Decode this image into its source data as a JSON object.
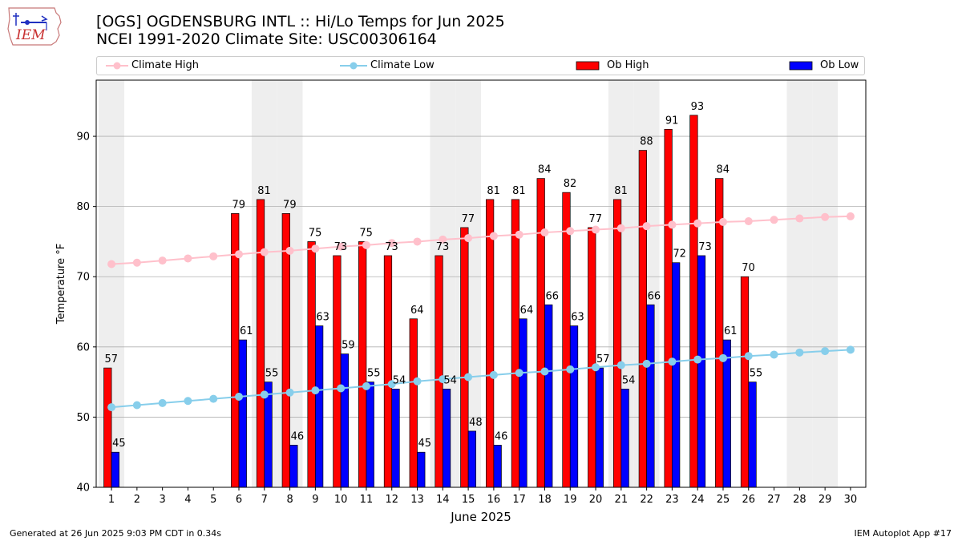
{
  "title_line1": "[OGS] OGDENSBURG INTL :: Hi/Lo Temps for Jun 2025",
  "title_line2": "NCEI 1991-2020 Climate Site: USC00306164",
  "logo_text": "IEM",
  "footer_left": "Generated at 26 Jun 2025 9:03 PM CDT in 0.34s",
  "footer_right": "IEM Autoplot App #17",
  "colors": {
    "ob_high": "#ff0000",
    "ob_low": "#0000ff",
    "climate_high": "#ffc0cb",
    "climate_low": "#87ceeb",
    "weekend_band": "#eeeeee",
    "grid": "#b0b0b0"
  },
  "legend": [
    {
      "label": "Climate High",
      "kind": "line",
      "color": "#ffc0cb"
    },
    {
      "label": "Climate Low",
      "kind": "line",
      "color": "#87ceeb"
    },
    {
      "label": "Ob High",
      "kind": "bar",
      "color": "#ff0000"
    },
    {
      "label": "Ob Low",
      "kind": "bar",
      "color": "#0000ff"
    }
  ],
  "chart_data": {
    "type": "bar",
    "xlabel": "June 2025",
    "ylabel": "Temperature °F",
    "ylim": [
      40,
      98
    ],
    "yticks": [
      40,
      50,
      60,
      70,
      80,
      90
    ],
    "grid": "horizontal",
    "legend_placement": "top",
    "categories": [
      "1",
      "2",
      "3",
      "4",
      "5",
      "6",
      "7",
      "8",
      "9",
      "10",
      "11",
      "12",
      "13",
      "14",
      "15",
      "16",
      "17",
      "18",
      "19",
      "20",
      "21",
      "22",
      "23",
      "24",
      "25",
      "26",
      "27",
      "28",
      "29",
      "30"
    ],
    "weekend_days": [
      1,
      7,
      8,
      14,
      15,
      21,
      22,
      28,
      29
    ],
    "series": [
      {
        "name": "Ob High",
        "type": "bar",
        "values": [
          57,
          null,
          null,
          null,
          null,
          79,
          81,
          79,
          75,
          73,
          75,
          73,
          64,
          73,
          77,
          81,
          81,
          84,
          82,
          77,
          81,
          88,
          91,
          93,
          84,
          70,
          null,
          null,
          null,
          null
        ]
      },
      {
        "name": "Ob Low",
        "type": "bar",
        "values": [
          45,
          null,
          null,
          null,
          null,
          61,
          55,
          46,
          63,
          59,
          55,
          54,
          45,
          54,
          48,
          46,
          64,
          66,
          63,
          57,
          54,
          66,
          72,
          73,
          61,
          55,
          null,
          null,
          null,
          null
        ]
      },
      {
        "name": "Climate High",
        "type": "line",
        "values": [
          71.8,
          72.0,
          72.3,
          72.6,
          72.9,
          73.2,
          73.5,
          73.7,
          74.0,
          74.3,
          74.5,
          74.8,
          75.0,
          75.3,
          75.5,
          75.8,
          76.0,
          76.3,
          76.5,
          76.7,
          76.9,
          77.2,
          77.4,
          77.6,
          77.8,
          77.9,
          78.1,
          78.3,
          78.5,
          78.6
        ]
      },
      {
        "name": "Climate Low",
        "type": "line",
        "values": [
          51.4,
          51.7,
          52.0,
          52.3,
          52.6,
          52.9,
          53.2,
          53.5,
          53.8,
          54.1,
          54.4,
          54.7,
          55.1,
          55.4,
          55.7,
          56.0,
          56.3,
          56.5,
          56.8,
          57.1,
          57.4,
          57.6,
          57.9,
          58.2,
          58.4,
          58.7,
          58.9,
          59.2,
          59.4,
          59.6
        ]
      }
    ]
  }
}
